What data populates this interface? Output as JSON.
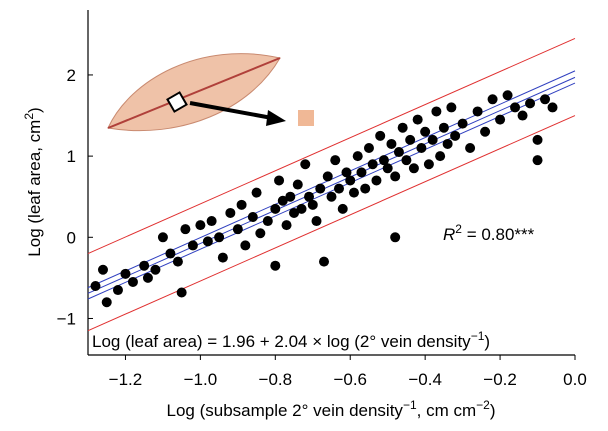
{
  "chart_data": {
    "type": "scatter",
    "x_label": {
      "text": "Log (subsample 2° vein density",
      "sup1": "−1",
      "mid": ", cm cm",
      "sup2": "−2",
      "end": ")"
    },
    "y_label": {
      "text": "Log (leaf area, cm",
      "sup": "2",
      "end": ")"
    },
    "annotation": {
      "text": "R",
      "sup": "2",
      "end": " = 0.80***"
    },
    "equation": {
      "text": "Log (leaf area) = 1.96 + 2.04 × log (2° vein density",
      "sup": "−1",
      "end": ")"
    },
    "xlim": [
      -1.3,
      0.0
    ],
    "ylim": [
      -1.45,
      2.8
    ],
    "xticks": [
      {
        "value": -1.2,
        "label": "−1.2"
      },
      {
        "value": -1.0,
        "label": "−1.0"
      },
      {
        "value": -0.8,
        "label": "−0.8"
      },
      {
        "value": -0.6,
        "label": "−0.6"
      },
      {
        "value": -0.4,
        "label": "−0.4"
      },
      {
        "value": -0.2,
        "label": "−0.2"
      },
      {
        "value": 0.0,
        "label": "0.0"
      }
    ],
    "yticks": [
      {
        "value": -1,
        "label": "−1"
      },
      0,
      1,
      2
    ],
    "color": "#000000",
    "x": [
      -1.28,
      -1.26,
      -1.25,
      -1.22,
      -1.2,
      -1.18,
      -1.15,
      -1.14,
      -1.12,
      -1.1,
      -1.08,
      -1.06,
      -1.05,
      -1.04,
      -1.02,
      -1.0,
      -0.98,
      -0.97,
      -0.95,
      -0.94,
      -0.92,
      -0.9,
      -0.89,
      -0.88,
      -0.86,
      -0.85,
      -0.84,
      -0.82,
      -0.8,
      -0.8,
      -0.79,
      -0.78,
      -0.77,
      -0.76,
      -0.75,
      -0.74,
      -0.73,
      -0.72,
      -0.71,
      -0.7,
      -0.69,
      -0.68,
      -0.67,
      -0.66,
      -0.65,
      -0.64,
      -0.63,
      -0.62,
      -0.61,
      -0.6,
      -0.59,
      -0.58,
      -0.57,
      -0.56,
      -0.55,
      -0.54,
      -0.53,
      -0.52,
      -0.51,
      -0.5,
      -0.49,
      -0.48,
      -0.48,
      -0.47,
      -0.46,
      -0.45,
      -0.44,
      -0.43,
      -0.42,
      -0.41,
      -0.4,
      -0.39,
      -0.38,
      -0.37,
      -0.36,
      -0.35,
      -0.34,
      -0.33,
      -0.32,
      -0.3,
      -0.28,
      -0.26,
      -0.24,
      -0.22,
      -0.2,
      -0.18,
      -0.16,
      -0.14,
      -0.12,
      -0.1,
      -0.1,
      -0.08,
      -0.06
    ],
    "y": [
      -0.6,
      -0.4,
      -0.8,
      -0.65,
      -0.45,
      -0.55,
      -0.35,
      -0.5,
      -0.4,
      0.0,
      -0.2,
      -0.3,
      -0.68,
      0.1,
      -0.1,
      0.15,
      -0.05,
      0.2,
      0.0,
      -0.25,
      0.3,
      0.1,
      0.4,
      -0.1,
      0.25,
      0.55,
      0.05,
      0.2,
      0.35,
      -0.35,
      0.7,
      0.45,
      0.15,
      0.5,
      0.3,
      0.65,
      0.35,
      0.9,
      0.5,
      0.4,
      0.2,
      0.6,
      -0.3,
      0.75,
      0.5,
      0.95,
      0.6,
      0.35,
      0.8,
      0.7,
      0.55,
      1.0,
      0.8,
      0.6,
      1.1,
      0.9,
      0.7,
      1.25,
      0.95,
      0.85,
      1.15,
      0.75,
      0.0,
      1.05,
      1.35,
      0.95,
      1.2,
      0.85,
      1.45,
      1.1,
      1.3,
      0.9,
      1.2,
      1.55,
      1.0,
      1.35,
      1.15,
      1.6,
      1.25,
      1.4,
      1.1,
      1.55,
      1.3,
      1.7,
      1.45,
      1.75,
      1.6,
      1.5,
      1.65,
      1.2,
      0.95,
      1.7,
      1.6
    ],
    "lines": [
      {
        "color": "#e03030",
        "x": [
          -1.3,
          0.0
        ],
        "y": [
          -0.2,
          2.45
        ]
      },
      {
        "color": "#e03030",
        "x": [
          -1.3,
          0.0
        ],
        "y": [
          -1.15,
          1.5
        ]
      },
      {
        "color": "#3040c0",
        "x": [
          -1.3,
          0.0
        ],
        "y": [
          -0.62,
          2.05
        ]
      },
      {
        "color": "#3040c0",
        "x": [
          -1.3,
          0.0
        ],
        "y": [
          -0.69,
          1.97
        ]
      },
      {
        "color": "#3040c0",
        "x": [
          -1.3,
          0.0
        ],
        "y": [
          -0.76,
          1.9
        ]
      }
    ]
  }
}
